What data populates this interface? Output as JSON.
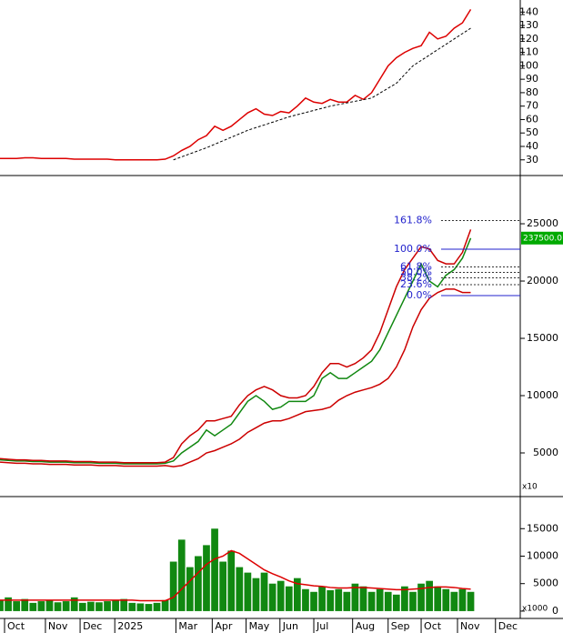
{
  "chart_data": [
    {
      "type": "line",
      "xlim": [
        0,
        63
      ],
      "ylim": [
        19,
        149
      ],
      "yticks": [
        30,
        40,
        50,
        60,
        70,
        80,
        90,
        100,
        110,
        120,
        130,
        140
      ],
      "x": [
        0,
        1,
        2,
        3,
        4,
        5,
        6,
        7,
        8,
        9,
        10,
        11,
        12,
        13,
        14,
        15,
        16,
        17,
        18,
        19,
        20,
        21,
        22,
        23,
        24,
        25,
        26,
        27,
        28,
        29,
        30,
        31,
        32,
        33,
        34,
        35,
        36,
        37,
        38,
        39,
        40,
        41,
        42,
        43,
        44,
        45,
        46,
        47,
        48,
        49,
        50,
        51,
        52,
        53,
        54,
        55,
        56,
        57
      ],
      "series": [
        {
          "color": "#dd0000",
          "values": [
            31,
            31,
            31,
            31.5,
            31.5,
            31,
            31,
            31,
            31,
            30.5,
            30.5,
            30.5,
            30.5,
            30.5,
            30,
            30,
            30,
            30,
            30,
            30,
            30.5,
            33,
            37,
            40,
            45,
            48,
            55,
            52,
            55,
            60,
            65,
            68,
            64,
            63,
            66,
            65,
            70,
            76,
            73,
            72,
            75,
            73,
            73,
            78,
            75,
            80,
            90,
            100,
            106,
            110,
            113,
            115,
            125,
            120,
            122,
            128,
            132,
            142
          ]
        },
        {
          "color": "#000000",
          "dashed": true,
          "x": [
            21,
            25,
            30,
            35,
            40,
            45,
            48,
            50,
            53,
            57
          ],
          "values": [
            30,
            39,
            52,
            62,
            70,
            76,
            87,
            100,
            112,
            128
          ]
        }
      ]
    },
    {
      "type": "line",
      "xlim": [
        0,
        63
      ],
      "ylim": [
        1270,
        29130
      ],
      "yticks": [
        5000,
        10000,
        15000,
        20000,
        25000
      ],
      "unit_label": "x10",
      "last_label": "237500.0",
      "x": [
        0,
        1,
        2,
        3,
        4,
        5,
        6,
        7,
        8,
        9,
        10,
        11,
        12,
        13,
        14,
        15,
        16,
        17,
        18,
        19,
        20,
        21,
        22,
        23,
        24,
        25,
        26,
        27,
        28,
        29,
        30,
        31,
        32,
        33,
        34,
        35,
        36,
        37,
        38,
        39,
        40,
        41,
        42,
        43,
        44,
        45,
        46,
        47,
        48,
        49,
        50,
        51,
        52,
        53,
        54,
        55,
        56,
        57
      ],
      "series": [
        {
          "color": "#118811",
          "values": [
            4400,
            4350,
            4300,
            4300,
            4250,
            4250,
            4200,
            4200,
            4200,
            4150,
            4150,
            4150,
            4100,
            4100,
            4100,
            4050,
            4050,
            4050,
            4050,
            4050,
            4100,
            4300,
            5000,
            5500,
            6000,
            7000,
            6500,
            7000,
            7500,
            8500,
            9500,
            10000,
            9500,
            8800,
            9000,
            9500,
            9500,
            9500,
            10000,
            11500,
            12000,
            11500,
            11500,
            12000,
            12500,
            13000,
            14000,
            15500,
            17000,
            18500,
            20000,
            21500,
            20000,
            19500,
            20500,
            21000,
            22000,
            23750
          ]
        },
        {
          "color": "#cc0000",
          "values": [
            4500,
            4450,
            4400,
            4400,
            4350,
            4350,
            4300,
            4300,
            4300,
            4250,
            4250,
            4250,
            4200,
            4200,
            4200,
            4150,
            4150,
            4150,
            4150,
            4150,
            4200,
            4600,
            5800,
            6500,
            7000,
            7800,
            7800,
            8000,
            8200,
            9200,
            10000,
            10500,
            10800,
            10500,
            10000,
            9800,
            9800,
            10000,
            10800,
            12000,
            12800,
            12800,
            12500,
            12800,
            13300,
            14000,
            15500,
            17500,
            19500,
            21000,
            22000,
            23000,
            22800,
            21800,
            21500,
            21500,
            22500,
            24500
          ]
        },
        {
          "color": "#cc0000",
          "values": [
            4200,
            4150,
            4100,
            4100,
            4050,
            4050,
            4000,
            4000,
            4000,
            3950,
            3950,
            3950,
            3900,
            3900,
            3900,
            3850,
            3850,
            3850,
            3850,
            3850,
            3900,
            3800,
            3900,
            4200,
            4500,
            5000,
            5200,
            5500,
            5800,
            6200,
            6800,
            7200,
            7600,
            7800,
            7800,
            8000,
            8300,
            8600,
            8700,
            8800,
            9000,
            9600,
            10000,
            10300,
            10500,
            10700,
            11000,
            11500,
            12500,
            14000,
            16000,
            17500,
            18500,
            19000,
            19300,
            19300,
            19000,
            19000
          ]
        }
      ],
      "fib_color": "#2222cc",
      "fib_levels": [
        {
          "label": "161.8%",
          "value": 25283,
          "solid": false
        },
        {
          "label": "100.0%",
          "value": 22780,
          "solid": true
        },
        {
          "label": "61.8%",
          "value": 21233,
          "solid": false
        },
        {
          "label": "50.0%",
          "value": 20755,
          "solid": false
        },
        {
          "label": "38.2%",
          "value": 20277,
          "solid": false
        },
        {
          "label": "23.6%",
          "value": 19686,
          "solid": false
        },
        {
          "label": "0.0%",
          "value": 18730,
          "solid": true
        }
      ]
    },
    {
      "type": "bar",
      "xlim": [
        0,
        63
      ],
      "ylim": [
        -1170,
        20670
      ],
      "yticks": [
        0,
        5000,
        10000,
        15000
      ],
      "unit_label": "x1000",
      "xticks": [
        {
          "value": 0.55,
          "label": "Oct"
        },
        {
          "value": 5.5,
          "label": "Nov"
        },
        {
          "value": 9.7,
          "label": "Dec"
        },
        {
          "value": 13.9,
          "label": "2025"
        },
        {
          "value": 21.3,
          "label": "Mar"
        },
        {
          "value": 25.7,
          "label": "Apr"
        },
        {
          "value": 29.8,
          "label": "May"
        },
        {
          "value": 33.9,
          "label": "Jun"
        },
        {
          "value": 38.0,
          "label": "Jul"
        },
        {
          "value": 42.7,
          "label": "Aug"
        },
        {
          "value": 47.0,
          "label": "Sep"
        },
        {
          "value": 51.0,
          "label": "Oct"
        },
        {
          "value": 55.4,
          "label": "Nov"
        },
        {
          "value": 60.0,
          "label": "Dec"
        }
      ],
      "x": [
        0,
        1,
        2,
        3,
        4,
        5,
        6,
        7,
        8,
        9,
        10,
        11,
        12,
        13,
        14,
        15,
        16,
        17,
        18,
        19,
        20,
        21,
        22,
        23,
        24,
        25,
        26,
        27,
        28,
        29,
        30,
        31,
        32,
        33,
        34,
        35,
        36,
        37,
        38,
        39,
        40,
        41,
        42,
        43,
        44,
        45,
        46,
        47,
        48,
        49,
        50,
        51,
        52,
        53,
        54,
        55,
        56,
        57
      ],
      "series": [
        {
          "color": "#118811",
          "values": [
            2000,
            2500,
            1800,
            2200,
            1500,
            1800,
            2000,
            1600,
            1800,
            2500,
            1500,
            1700,
            1600,
            1800,
            2000,
            2200,
            1500,
            1400,
            1300,
            1500,
            2000,
            9000,
            13000,
            8000,
            10000,
            12000,
            15000,
            9000,
            11000,
            8000,
            7000,
            6000,
            7000,
            5000,
            5500,
            4500,
            6000,
            4000,
            3500,
            4500,
            3800,
            4000,
            3500,
            5000,
            4500,
            3500,
            4000,
            3500,
            3000,
            4500,
            3500,
            5000,
            5500,
            4500,
            4000,
            3500,
            4000,
            3500
          ]
        },
        {
          "color": "#dd0000",
          "kind": "line",
          "values": [
            2000,
            2000,
            2000,
            2000,
            2000,
            2000,
            2000,
            2000,
            2000,
            2000,
            2000,
            2000,
            2000,
            2000,
            2000,
            2000,
            2000,
            1900,
            1900,
            1900,
            1900,
            2500,
            4000,
            5500,
            7000,
            8500,
            9500,
            10000,
            11000,
            10500,
            9500,
            8500,
            7500,
            6800,
            6200,
            5500,
            5000,
            4800,
            4600,
            4500,
            4300,
            4200,
            4200,
            4300,
            4300,
            4200,
            4100,
            4000,
            3900,
            3900,
            4000,
            4100,
            4300,
            4400,
            4400,
            4300,
            4100,
            4000
          ]
        }
      ]
    }
  ]
}
